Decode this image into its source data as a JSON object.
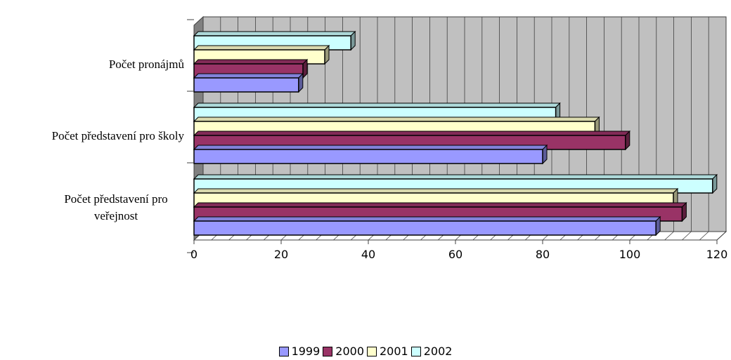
{
  "chart_data": {
    "type": "bar",
    "orientation": "horizontal",
    "style": "3d-clustered",
    "categories": [
      "Počet pronájmů",
      "Počet představení pro školy",
      "Počet představení pro veřejnost"
    ],
    "category_labels": [
      [
        "Počet pronájmů"
      ],
      [
        "Počet představení pro školy"
      ],
      [
        "Počet představení pro",
        "veřejnost"
      ]
    ],
    "series": [
      {
        "name": "1999",
        "values": [
          24,
          80,
          106
        ],
        "color": "#9999ff"
      },
      {
        "name": "2000",
        "values": [
          25,
          99,
          112
        ],
        "color": "#993366"
      },
      {
        "name": "2001",
        "values": [
          30,
          92,
          110
        ],
        "color": "#ffffcc"
      },
      {
        "name": "2002",
        "values": [
          36,
          83,
          119
        ],
        "color": "#ccffff"
      }
    ],
    "xlim": [
      0,
      120
    ],
    "xticks": [
      "0",
      "20",
      "40",
      "60",
      "80",
      "100",
      "120"
    ],
    "grid": true,
    "wall_color": "#c0c0c0",
    "legend_position": "bottom"
  }
}
